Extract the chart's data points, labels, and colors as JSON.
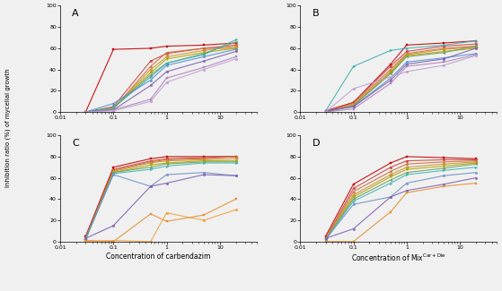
{
  "x_values": [
    0.03,
    0.1,
    0.5,
    1,
    5,
    20
  ],
  "panel_labels": [
    "A",
    "B",
    "C",
    "D"
  ],
  "xlabel_left": "Concentration of carbendazim",
  "xlabel_right": "Concentration of Mix",
  "xlabel_right_super": "Car+Die",
  "ylabel": "Inhibition ratio (%) of mycelial growth",
  "ylim": [
    0,
    100
  ],
  "yticks": [
    0,
    20,
    40,
    60,
    80,
    100
  ],
  "xlim": [
    0.015,
    50
  ],
  "panel_A_series": [
    [
      0,
      59,
      60,
      62,
      63,
      65
    ],
    [
      0,
      5,
      48,
      55,
      60,
      63
    ],
    [
      0,
      3,
      43,
      56,
      60,
      60
    ],
    [
      0,
      3,
      40,
      52,
      58,
      62
    ],
    [
      0,
      4,
      37,
      50,
      56,
      60
    ],
    [
      0,
      4,
      35,
      46,
      55,
      66
    ],
    [
      0,
      4,
      33,
      46,
      54,
      68
    ],
    [
      0,
      8,
      30,
      44,
      52,
      59
    ],
    [
      0,
      2,
      25,
      38,
      48,
      57
    ],
    [
      0,
      2,
      12,
      32,
      42,
      52
    ],
    [
      0,
      1,
      10,
      28,
      40,
      50
    ]
  ],
  "panel_B_series": [
    [
      1,
      9,
      45,
      63,
      65,
      67
    ],
    [
      1,
      9,
      43,
      57,
      62,
      64
    ],
    [
      0,
      8,
      40,
      55,
      60,
      62
    ],
    [
      0,
      7,
      38,
      54,
      59,
      61
    ],
    [
      0,
      6,
      37,
      53,
      57,
      60
    ],
    [
      0,
      6,
      36,
      52,
      56,
      62
    ],
    [
      1,
      43,
      58,
      60,
      63,
      67
    ],
    [
      1,
      5,
      32,
      47,
      51,
      55
    ],
    [
      1,
      5,
      30,
      45,
      50,
      60
    ],
    [
      0,
      3,
      27,
      43,
      47,
      54
    ],
    [
      0,
      22,
      33,
      38,
      44,
      53
    ]
  ],
  "panel_C_series": [
    [
      5,
      70,
      78,
      80,
      80,
      80
    ],
    [
      4,
      68,
      76,
      78,
      79,
      80
    ],
    [
      3,
      67,
      75,
      77,
      78,
      80
    ],
    [
      2,
      66,
      74,
      76,
      77,
      78
    ],
    [
      3,
      65,
      72,
      74,
      76,
      76
    ],
    [
      2,
      65,
      70,
      73,
      75,
      75
    ],
    [
      2,
      64,
      68,
      71,
      74,
      74
    ],
    [
      3,
      63,
      52,
      63,
      65,
      62
    ],
    [
      3,
      15,
      52,
      55,
      63,
      62
    ],
    [
      1,
      0,
      26,
      19,
      25,
      40
    ],
    [
      0,
      1,
      0,
      27,
      20,
      30
    ]
  ],
  "panel_D_series": [
    [
      5,
      54,
      74,
      80,
      79,
      78
    ],
    [
      3,
      50,
      70,
      76,
      77,
      77
    ],
    [
      2,
      47,
      66,
      73,
      75,
      76
    ],
    [
      3,
      44,
      63,
      70,
      73,
      75
    ],
    [
      2,
      42,
      61,
      68,
      71,
      74
    ],
    [
      2,
      40,
      58,
      65,
      69,
      73
    ],
    [
      2,
      38,
      55,
      63,
      67,
      70
    ],
    [
      2,
      35,
      42,
      55,
      62,
      65
    ],
    [
      3,
      12,
      42,
      48,
      54,
      60
    ],
    [
      0,
      0,
      28,
      46,
      52,
      55
    ]
  ],
  "colors_A": [
    "#c00000",
    "#d04040",
    "#c87030",
    "#d09030",
    "#a8a800",
    "#70a060",
    "#40b0b0",
    "#5090d0",
    "#8060b0",
    "#b080c0",
    "#c0a0d0"
  ],
  "colors_B": [
    "#c00000",
    "#d04040",
    "#c87030",
    "#d09030",
    "#a8a800",
    "#70a060",
    "#40b0b0",
    "#5090d0",
    "#8060b0",
    "#b080c0",
    "#c0a0d0"
  ],
  "colors_C": [
    "#c00000",
    "#d04040",
    "#c87030",
    "#d09030",
    "#a8a800",
    "#70a060",
    "#40b8b8",
    "#7090c8",
    "#8060b0",
    "#e09030",
    "#f0a040"
  ],
  "colors_D": [
    "#c00000",
    "#d04040",
    "#c87030",
    "#d09030",
    "#a8a800",
    "#70a060",
    "#40b8b8",
    "#7090c8",
    "#8060b0",
    "#e09030"
  ],
  "lw": 0.8,
  "ms": 2.0,
  "bg_color": "#f0f0f0"
}
